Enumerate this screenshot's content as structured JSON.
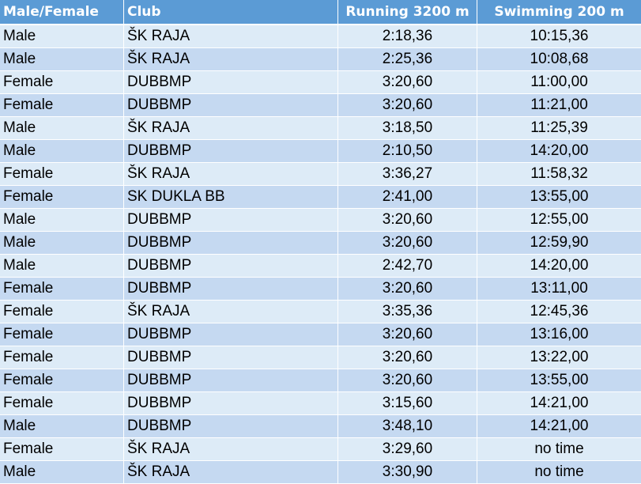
{
  "table": {
    "header": [
      "Male/Female",
      "Club",
      "Running 3200 m",
      "Swimming 200 m"
    ],
    "rows": [
      [
        "Male",
        "ŠK RAJA",
        "2:18,36",
        "10:15,36"
      ],
      [
        "Male",
        "ŠK RAJA",
        "2:25,36",
        "10:08,68"
      ],
      [
        "Female",
        "DUBBMP",
        "3:20,60",
        "11:00,00"
      ],
      [
        "Female",
        "DUBBMP",
        "3:20,60",
        "11:21,00"
      ],
      [
        "Male",
        "ŠK RAJA",
        "3:18,50",
        "11:25,39"
      ],
      [
        "Male",
        "DUBBMP",
        "2:10,50",
        "14:20,00"
      ],
      [
        "Female",
        "ŠK RAJA",
        "3:36,27",
        "11:58,32"
      ],
      [
        "Female",
        "SK DUKLA BB",
        "2:41,00",
        "13:55,00"
      ],
      [
        "Male",
        "DUBBMP",
        "3:20,60",
        "12:55,00"
      ],
      [
        "Male",
        "DUBBMP",
        "3:20,60",
        "12:59,90"
      ],
      [
        "Male",
        "DUBBMP",
        "2:42,70",
        "14:20,00"
      ],
      [
        "Female",
        "DUBBMP",
        "3:20,60",
        "13:11,00"
      ],
      [
        "Female",
        "ŠK RAJA",
        "3:35,36",
        "12:45,36"
      ],
      [
        "Female",
        "DUBBMP",
        "3:20,60",
        "13:16,00"
      ],
      [
        "Female",
        "DUBBMP",
        "3:20,60",
        "13:22,00"
      ],
      [
        "Female",
        "DUBBMP",
        "3:20,60",
        "13:55,00"
      ],
      [
        "Female",
        "DUBBMP",
        "3:15,60",
        "14:21,00"
      ],
      [
        "Male",
        "DUBBMP",
        "3:48,10",
        "14:21,00"
      ],
      [
        "Female",
        "ŠK RAJA",
        "3:29,60",
        "no time"
      ],
      [
        "Male",
        "ŠK RAJA",
        "3:30,90",
        "no time"
      ]
    ]
  }
}
